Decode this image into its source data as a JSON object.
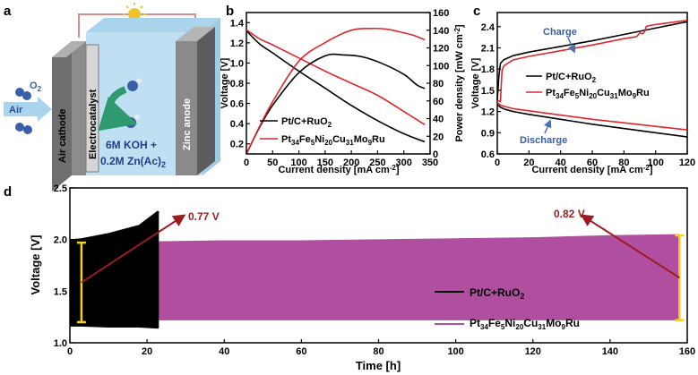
{
  "panels": {
    "a": {
      "label": "a",
      "air": "Air",
      "o2": "O",
      "o2_sub": "2",
      "air_cathode": "Air cathode",
      "electrocatalyst": "Electrocatalyst",
      "zinc_anode": "Zinc anode",
      "electrolyte_line1": "6M KOH +",
      "electrolyte_line2_pre": "0.2M Zn(Ac)",
      "electrolyte_line2_sub": "2",
      "colors": {
        "cell": "#bfe0f2",
        "electrode": "#8c8c8c",
        "arrow": "#2f9a72",
        "wire": "#d98c8c",
        "sun": "#f2c12e"
      }
    },
    "b": {
      "label": "b",
      "legend": [
        {
          "pre": "Pt/C+RuO",
          "sub": "2"
        },
        {
          "parts": [
            "Pt",
            "34",
            "Fe",
            "5",
            "Ni",
            "20",
            "Cu",
            "31",
            "Mo",
            "9",
            "Ru"
          ]
        }
      ]
    },
    "c": {
      "label": "c",
      "charge": "Charge",
      "discharge": "Discharge",
      "legend": [
        {
          "pre": "Pt/C+RuO",
          "sub": "2"
        },
        {
          "parts": [
            "Pt",
            "34",
            "Fe",
            "5",
            "Ni",
            "20",
            "Cu",
            "31",
            "Mo",
            "9",
            "Ru"
          ]
        }
      ]
    },
    "d": {
      "label": "d",
      "ann1": "0.77 V",
      "ann2": "0.82 V",
      "legend": [
        {
          "pre": "Pt/C+RuO",
          "sub": "2"
        },
        {
          "parts": [
            "Pt",
            "34",
            "Fe",
            "5",
            "Ni",
            "20",
            "Cu",
            "31",
            "Mo",
            "9",
            "Ru"
          ]
        }
      ]
    }
  },
  "chart_data": [
    {
      "panel": "b",
      "type": "line",
      "xlabel_pre": "Current density [mA cm",
      "xlabel_sup": "-2",
      "xlabel_post": "]",
      "ylabel": "Voltage [V]",
      "y2label_pre": "Power density [mW cm",
      "y2label_sup": "-2",
      "y2label_post": "]",
      "xlim": [
        0,
        350
      ],
      "ylim": [
        0.1,
        1.5
      ],
      "y2lim": [
        0,
        160
      ],
      "xticks": [
        0,
        50,
        100,
        150,
        200,
        250,
        300,
        350
      ],
      "yticks": [
        0.2,
        0.4,
        0.6,
        0.8,
        1.0,
        1.2,
        1.4
      ],
      "y2ticks": [
        0,
        20,
        40,
        60,
        80,
        100,
        120,
        140,
        160
      ],
      "colors": {
        "s1": "#000000",
        "s2": "#e0262b"
      },
      "series": [
        {
          "axis": "left",
          "color_key": "s1",
          "x": [
            0,
            25,
            50,
            100,
            150,
            200,
            250,
            300,
            340
          ],
          "y": [
            1.32,
            1.19,
            1.1,
            0.92,
            0.75,
            0.58,
            0.43,
            0.3,
            0.22
          ]
        },
        {
          "axis": "left",
          "color_key": "s2",
          "x": [
            0,
            25,
            50,
            100,
            150,
            200,
            250,
            300,
            340
          ],
          "y": [
            1.33,
            1.24,
            1.18,
            1.05,
            0.92,
            0.8,
            0.68,
            0.52,
            0.39
          ]
        },
        {
          "axis": "right",
          "color_key": "s1",
          "x": [
            0,
            25,
            50,
            100,
            150,
            185,
            220,
            260,
            300,
            325,
            340
          ],
          "y": [
            0,
            30,
            55,
            92,
            111,
            112,
            110,
            102,
            90,
            78,
            74
          ]
        },
        {
          "axis": "right",
          "color_key": "s2",
          "x": [
            0,
            25,
            50,
            100,
            150,
            200,
            240,
            270,
            300,
            320,
            340
          ],
          "y": [
            0,
            31,
            59,
            105,
            126,
            140,
            142,
            141,
            137,
            134,
            129
          ]
        }
      ]
    },
    {
      "panel": "c",
      "type": "line",
      "xlabel_pre": "Current density [mA cm",
      "xlabel_sup": "-2",
      "xlabel_post": "]",
      "ylabel": "Voltage [V]",
      "xlim": [
        0,
        120
      ],
      "ylim": [
        0.6,
        2.6
      ],
      "xticks": [
        0,
        20,
        40,
        60,
        80,
        100,
        120
      ],
      "yticks": [
        0.6,
        0.9,
        1.2,
        1.5,
        1.8,
        2.1,
        2.4
      ],
      "colors": {
        "s1": "#000000",
        "s2": "#e0262b"
      },
      "series": [
        {
          "color_key": "s1",
          "x": [
            0,
            1,
            2,
            4,
            10,
            20,
            40,
            60,
            80,
            100,
            120
          ],
          "y": [
            1.36,
            1.7,
            1.88,
            1.93,
            1.99,
            2.04,
            2.12,
            2.2,
            2.29,
            2.38,
            2.47
          ]
        },
        {
          "color_key": "s1",
          "x": [
            0,
            1,
            2,
            5,
            10,
            20,
            40,
            60,
            80,
            100,
            120
          ],
          "y": [
            1.3,
            1.28,
            1.26,
            1.23,
            1.2,
            1.16,
            1.09,
            1.02,
            0.96,
            0.9,
            0.84
          ]
        },
        {
          "color_key": "s2",
          "x": [
            0,
            2,
            3,
            4,
            5,
            10,
            20,
            40,
            60,
            80,
            88,
            90,
            92,
            93,
            94,
            95,
            100,
            110,
            120
          ],
          "y": [
            1.36,
            1.34,
            1.78,
            1.84,
            1.86,
            1.93,
            1.98,
            2.06,
            2.14,
            2.23,
            2.26,
            2.31,
            2.3,
            2.33,
            2.4,
            2.41,
            2.43,
            2.46,
            2.49
          ]
        },
        {
          "color_key": "s2",
          "x": [
            0,
            1,
            2,
            5,
            10,
            20,
            40,
            60,
            80,
            100,
            120
          ],
          "y": [
            1.32,
            1.31,
            1.29,
            1.27,
            1.24,
            1.21,
            1.15,
            1.09,
            1.04,
            0.99,
            0.94
          ]
        }
      ]
    },
    {
      "panel": "d",
      "type": "area",
      "xlabel": "Time [h]",
      "ylabel": "Voltage [V]",
      "xlim": [
        0,
        160
      ],
      "ylim": [
        1.0,
        2.5
      ],
      "xticks": [
        0,
        20,
        40,
        60,
        80,
        100,
        120,
        140,
        160
      ],
      "yticks": [
        1.0,
        1.5,
        2.0,
        2.5
      ],
      "colors": {
        "s1": "#000000",
        "s2": "#b04fa0",
        "ann": "#9b1b1f",
        "bracket": "#f2d21b"
      },
      "series": [
        {
          "color_key": "s1",
          "x": [
            0,
            3,
            10,
            18,
            23
          ],
          "upper": [
            1.99,
            2.0,
            2.05,
            2.13,
            2.27
          ],
          "lower": [
            1.17,
            1.17,
            1.16,
            1.16,
            1.15
          ]
        },
        {
          "color_key": "s2",
          "x": [
            0,
            3,
            20,
            40,
            60,
            80,
            100,
            120,
            140,
            158
          ],
          "upper": [
            1.97,
            1.97,
            1.98,
            1.99,
            1.99,
            2.0,
            2.01,
            2.02,
            2.04,
            2.05
          ],
          "lower": [
            1.22,
            1.22,
            1.22,
            1.22,
            1.22,
            1.22,
            1.22,
            1.22,
            1.22,
            1.22
          ]
        }
      ],
      "gaps": [
        {
          "label_key": "ann1",
          "x": 3,
          "from": 1.2,
          "to": 1.97,
          "value": 0.77
        },
        {
          "label_key": "ann2",
          "x": 158,
          "from": 1.22,
          "to": 2.04,
          "value": 0.82
        }
      ]
    }
  ]
}
